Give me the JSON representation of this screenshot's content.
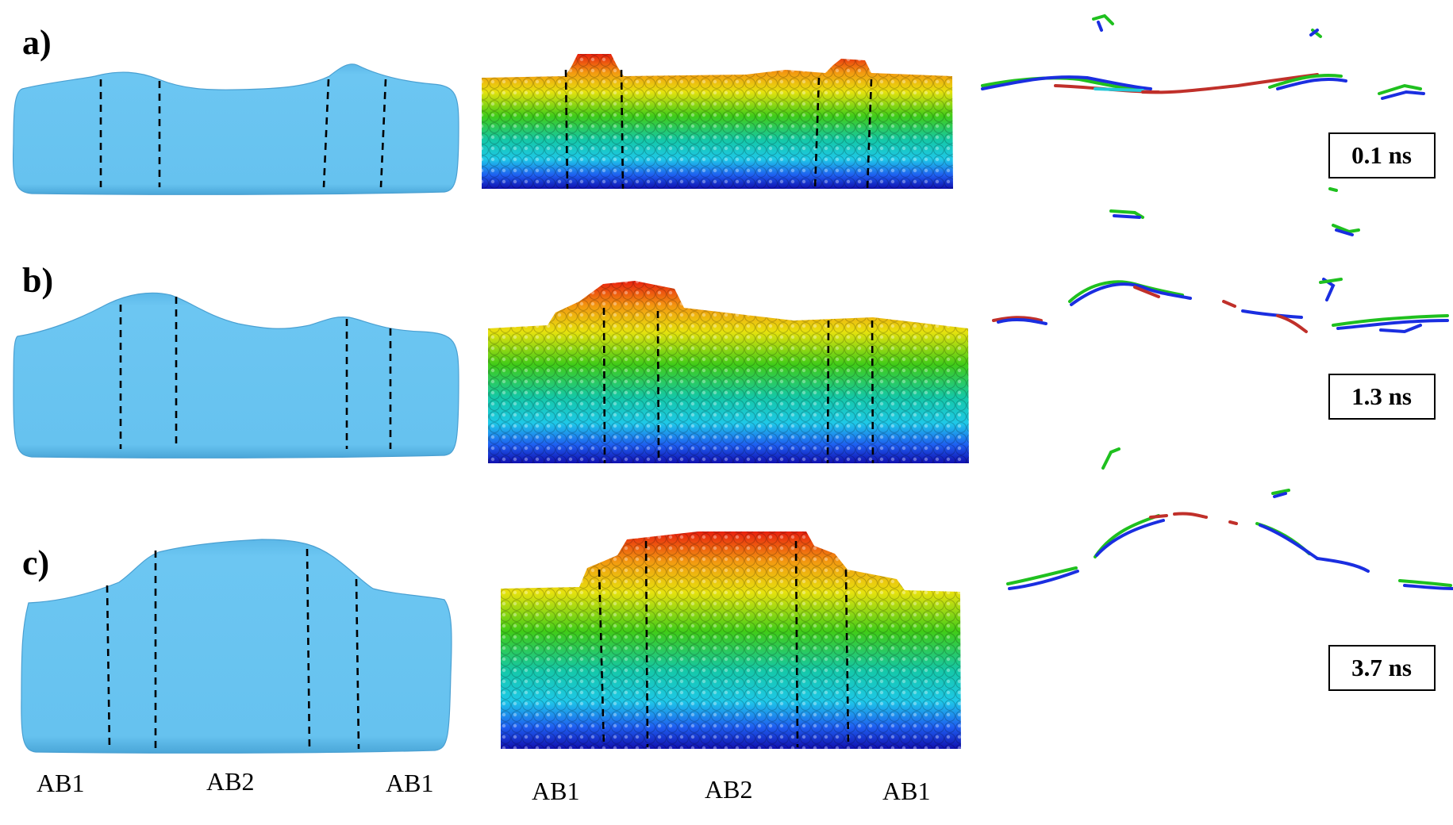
{
  "panels": [
    {
      "label": "a)",
      "time": "0.1 ns"
    },
    {
      "label": "b)",
      "time": "1.3 ns"
    },
    {
      "label": "c)",
      "time": "3.7 ns"
    }
  ],
  "regions": {
    "surface": [
      "AB1",
      "AB2",
      "AB1"
    ],
    "atoms": [
      "AB1",
      "AB2",
      "AB1"
    ]
  },
  "colors": {
    "surface_fill": "#66c3ef",
    "atom_gradient_top": "#e8200e",
    "atom_gradient_bottom": "#1414b8",
    "dislocation_blue": "#1a2ee0",
    "dislocation_green": "#1fc01f",
    "dislocation_red": "#c0302a",
    "dislocation_cyan": "#22c8d8"
  }
}
